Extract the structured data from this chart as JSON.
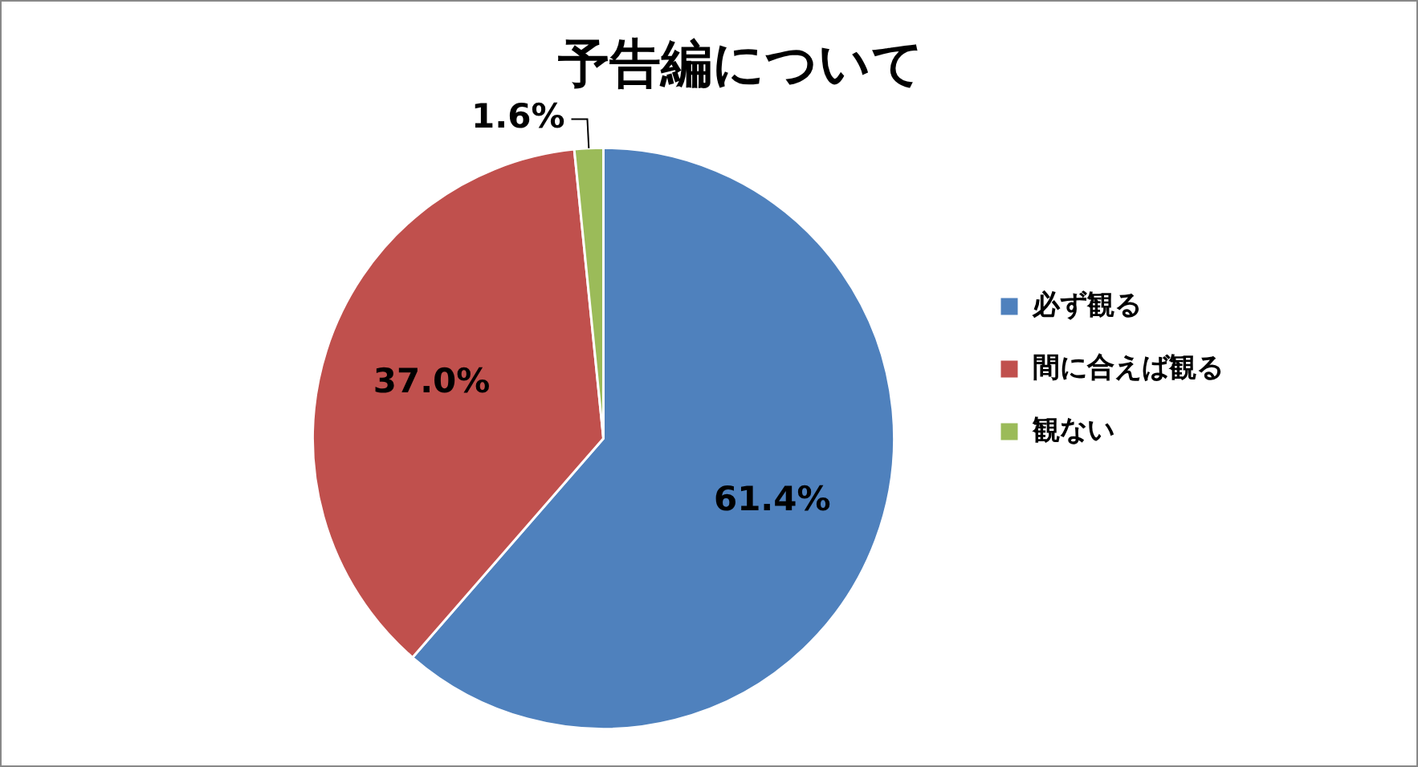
{
  "chart_data": {
    "type": "pie",
    "title": "予告編について",
    "categories": [
      "必ず観る",
      "間に合えば観る",
      "観ない"
    ],
    "values": [
      61.4,
      37.0,
      1.6
    ],
    "colors": [
      "#4f81bd",
      "#c0504d",
      "#9bbb59"
    ],
    "value_labels": [
      "61.4%",
      "37.0%",
      "1.6%"
    ],
    "legend": "right"
  }
}
